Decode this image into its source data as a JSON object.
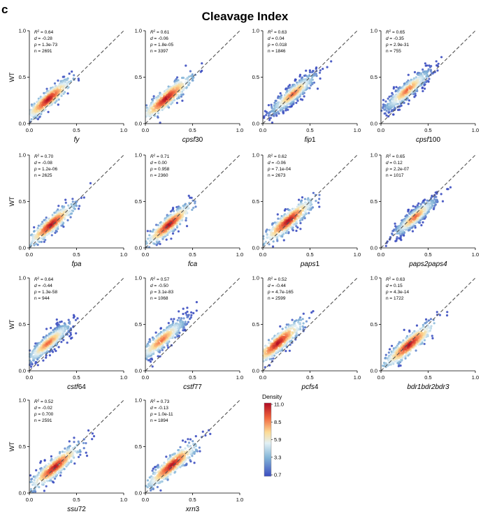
{
  "panel_label": "c",
  "title": "Cleavage Index",
  "ylabel": "WT",
  "density_legend": {
    "title": "Density",
    "ticks": [
      "11.0",
      "8.5",
      "5.9",
      "3.3",
      "0.7"
    ],
    "colors": [
      "#3b4cc0",
      "#7fb3d5",
      "#e0f3f8",
      "#fdd9a0",
      "#f46d43",
      "#a50026"
    ]
  },
  "chart_data": [
    {
      "type": "scatter",
      "xlabel": "fy",
      "xlabel_italic": "fy",
      "xlabel_suffix": "",
      "xlim": [
        0,
        1
      ],
      "ylim": [
        0,
        1
      ],
      "xticks": [
        "0.0",
        "0.5",
        "1.0"
      ],
      "yticks": [
        "0.0",
        "0.5",
        "1.0"
      ],
      "show_ylabel": true,
      "stats": {
        "r2": "0.64",
        "d": "-0.28",
        "p": "1.3e-73",
        "n": "2691"
      },
      "center": [
        0.2,
        0.26
      ],
      "spread": 0.11,
      "density_peak": "high"
    },
    {
      "type": "scatter",
      "xlabel": "cpsf30",
      "xlabel_italic": "cpsf",
      "xlabel_suffix": "30",
      "xlim": [
        0,
        1
      ],
      "ylim": [
        0,
        1
      ],
      "xticks": [
        "0.0",
        "0.5",
        "1.0"
      ],
      "yticks": [
        "0.0",
        "0.5",
        "1.0"
      ],
      "show_ylabel": false,
      "stats": {
        "r2": "0.61",
        "d": "-0.06",
        "p": "1.8e-05",
        "n": "3397"
      },
      "center": [
        0.22,
        0.27
      ],
      "spread": 0.12,
      "density_peak": "high"
    },
    {
      "type": "scatter",
      "xlabel": "fip1",
      "xlabel_italic": "fip",
      "xlabel_suffix": "1",
      "xlim": [
        0,
        1
      ],
      "ylim": [
        0,
        1
      ],
      "xticks": [
        "0.0",
        "0.5",
        "1.0"
      ],
      "yticks": [
        "0.0",
        "0.5",
        "1.0"
      ],
      "show_ylabel": false,
      "stats": {
        "r2": "0.63",
        "d": "0.04",
        "p": "0.018",
        "n": "1846"
      },
      "center": [
        0.32,
        0.32
      ],
      "spread": 0.12,
      "density_peak": "mid"
    },
    {
      "type": "scatter",
      "xlabel": "cpsf100",
      "xlabel_italic": "cpsf",
      "xlabel_suffix": "100",
      "xlim": [
        0,
        1
      ],
      "ylim": [
        0,
        1
      ],
      "xticks": [
        "0.0",
        "0.5",
        "1.0"
      ],
      "yticks": [
        "0.0",
        "0.5",
        "1.0"
      ],
      "show_ylabel": false,
      "stats": {
        "r2": "0.65",
        "d": "-0.35",
        "p": "2.9e-31",
        "n": "755"
      },
      "center": [
        0.28,
        0.36
      ],
      "spread": 0.12,
      "density_peak": "mid"
    },
    {
      "type": "scatter",
      "xlabel": "fpa",
      "xlabel_italic": "fpa",
      "xlabel_suffix": "",
      "xlim": [
        0,
        1
      ],
      "ylim": [
        0,
        1
      ],
      "xticks": [
        "0.0",
        "0.5",
        "1.0"
      ],
      "yticks": [
        "0.0",
        "0.5",
        "1.0"
      ],
      "show_ylabel": true,
      "stats": {
        "r2": "0.70",
        "d": "-0.08",
        "p": "1.2e-06",
        "n": "2625"
      },
      "center": [
        0.23,
        0.25
      ],
      "spread": 0.11,
      "density_peak": "high"
    },
    {
      "type": "scatter",
      "xlabel": "fca",
      "xlabel_italic": "fca",
      "xlabel_suffix": "",
      "xlim": [
        0,
        1
      ],
      "ylim": [
        0,
        1
      ],
      "xticks": [
        "0.0",
        "0.5",
        "1.0"
      ],
      "yticks": [
        "0.0",
        "0.5",
        "1.0"
      ],
      "show_ylabel": false,
      "stats": {
        "r2": "0.71",
        "d": "0.00",
        "p": "0.958",
        "n": "2360"
      },
      "center": [
        0.25,
        0.25
      ],
      "spread": 0.11,
      "density_peak": "high"
    },
    {
      "type": "scatter",
      "xlabel": "paps1",
      "xlabel_italic": "paps",
      "xlabel_suffix": "1",
      "xlim": [
        0,
        1
      ],
      "ylim": [
        0,
        1
      ],
      "xticks": [
        "0.0",
        "0.5",
        "1.0"
      ],
      "yticks": [
        "0.0",
        "0.5",
        "1.0"
      ],
      "show_ylabel": false,
      "stats": {
        "r2": "0.62",
        "d": "-0.06",
        "p": "7.1e-04",
        "n": "2673"
      },
      "center": [
        0.27,
        0.29
      ],
      "spread": 0.12,
      "density_peak": "high"
    },
    {
      "type": "scatter",
      "xlabel": "paps2paps4",
      "xlabel_italic": "paps2paps4",
      "xlabel_suffix": "",
      "xlim": [
        0,
        1
      ],
      "ylim": [
        0,
        1
      ],
      "xticks": [
        "0.0",
        "0.5",
        "1.0"
      ],
      "yticks": [
        "0.0",
        "0.5",
        "1.0"
      ],
      "show_ylabel": false,
      "stats": {
        "r2": "0.65",
        "d": "0.12",
        "p": "2.2e-07",
        "n": "1017"
      },
      "center": [
        0.36,
        0.33
      ],
      "spread": 0.11,
      "density_peak": "mid"
    },
    {
      "type": "scatter",
      "xlabel": "cstf64",
      "xlabel_italic": "cstf",
      "xlabel_suffix": "64",
      "xlim": [
        0,
        1
      ],
      "ylim": [
        0,
        1
      ],
      "xticks": [
        "0.0",
        "0.5",
        "1.0"
      ],
      "yticks": [
        "0.0",
        "0.5",
        "1.0"
      ],
      "show_ylabel": true,
      "stats": {
        "r2": "0.64",
        "d": "-0.44",
        "p": "1.3e-58",
        "n": "944"
      },
      "center": [
        0.2,
        0.3
      ],
      "spread": 0.12,
      "density_peak": "mid"
    },
    {
      "type": "scatter",
      "xlabel": "cstf77",
      "xlabel_italic": "cstf",
      "xlabel_suffix": "77",
      "xlim": [
        0,
        1
      ],
      "ylim": [
        0,
        1
      ],
      "xticks": [
        "0.0",
        "0.5",
        "1.0"
      ],
      "yticks": [
        "0.0",
        "0.5",
        "1.0"
      ],
      "show_ylabel": false,
      "stats": {
        "r2": "0.57",
        "d": "-0.50",
        "p": "3.1e-83",
        "n": "1068"
      },
      "center": [
        0.17,
        0.33
      ],
      "spread": 0.13,
      "density_peak": "mid"
    },
    {
      "type": "scatter",
      "xlabel": "pcfs4",
      "xlabel_italic": "pcfs",
      "xlabel_suffix": "4",
      "xlim": [
        0,
        1
      ],
      "ylim": [
        0,
        1
      ],
      "xticks": [
        "0.0",
        "0.5",
        "1.0"
      ],
      "yticks": [
        "0.0",
        "0.5",
        "1.0"
      ],
      "show_ylabel": false,
      "stats": {
        "r2": "0.52",
        "d": "-0.44",
        "p": "4.7e-165",
        "n": "2599"
      },
      "center": [
        0.16,
        0.3
      ],
      "spread": 0.12,
      "density_peak": "high"
    },
    {
      "type": "scatter",
      "xlabel": "bdr1bdr2bdr3",
      "xlabel_italic": "bdr1bdr2bdr3",
      "xlabel_suffix": "",
      "xlim": [
        0,
        1
      ],
      "ylim": [
        0,
        1
      ],
      "xticks": [
        "0.0",
        "0.5",
        "1.0"
      ],
      "yticks": [
        "0.0",
        "0.5",
        "1.0"
      ],
      "show_ylabel": false,
      "stats": {
        "r2": "0.63",
        "d": "0.15",
        "p": "4.3e-14",
        "n": "1722"
      },
      "center": [
        0.3,
        0.28
      ],
      "spread": 0.12,
      "density_peak": "high"
    },
    {
      "type": "scatter",
      "xlabel": "ssu72",
      "xlabel_italic": "ssu",
      "xlabel_suffix": "72",
      "xlim": [
        0,
        1
      ],
      "ylim": [
        0,
        1
      ],
      "xticks": [
        "0.0",
        "0.5",
        "1.0"
      ],
      "yticks": [
        "0.0",
        "0.5",
        "1.0"
      ],
      "show_ylabel": true,
      "stats": {
        "r2": "0.52",
        "d": "-0.02",
        "p": "0.700",
        "n": "2591"
      },
      "center": [
        0.27,
        0.28
      ],
      "spread": 0.12,
      "density_peak": "high"
    },
    {
      "type": "scatter",
      "xlabel": "xrn3",
      "xlabel_italic": "xrn",
      "xlabel_suffix": "3",
      "xlim": [
        0,
        1
      ],
      "ylim": [
        0,
        1
      ],
      "xticks": [
        "0.0",
        "0.5",
        "1.0"
      ],
      "yticks": [
        "0.0",
        "0.5",
        "1.0"
      ],
      "show_ylabel": false,
      "stats": {
        "r2": "0.73",
        "d": "-0.13",
        "p": "1.0e-11",
        "n": "1894"
      },
      "center": [
        0.28,
        0.3
      ],
      "spread": 0.12,
      "density_peak": "high"
    }
  ]
}
